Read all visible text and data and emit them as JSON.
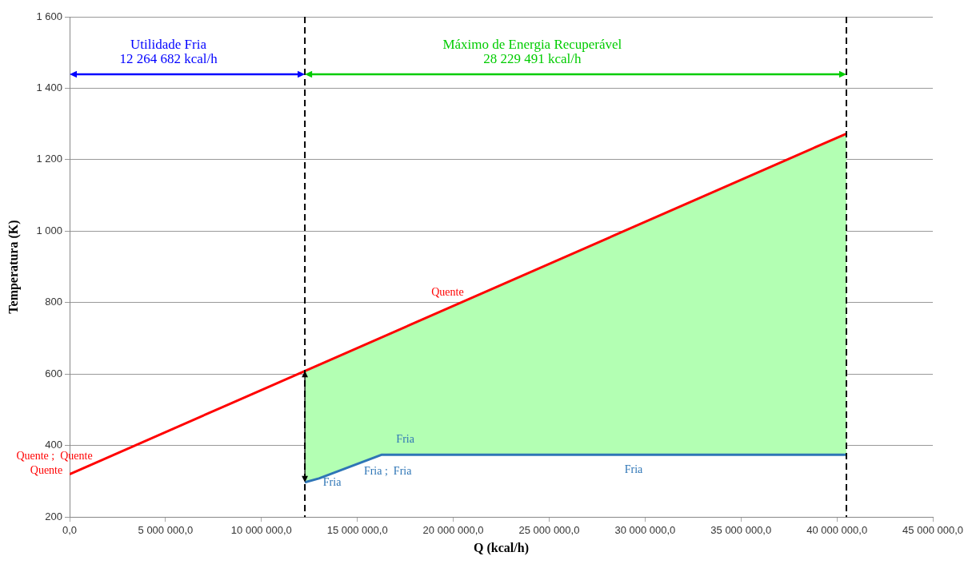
{
  "chart_data": {
    "type": "line",
    "xlabel": "Q (kcal/h)",
    "ylabel": "Temperatura (K)",
    "xlim": [
      0,
      45000000
    ],
    "xticks": [
      {
        "value": 0,
        "label": "0,0"
      },
      {
        "value": 5000000,
        "label": "5 000 000,0"
      },
      {
        "value": 10000000,
        "label": "10 000 000,0"
      },
      {
        "value": 15000000,
        "label": "15 000 000,0"
      },
      {
        "value": 20000000,
        "label": "20 000 000,0"
      },
      {
        "value": 25000000,
        "label": "25 000 000,0"
      },
      {
        "value": 30000000,
        "label": "30 000 000,0"
      },
      {
        "value": 35000000,
        "label": "35 000 000,0"
      },
      {
        "value": 40000000,
        "label": "40 000 000,0"
      },
      {
        "value": 45000000,
        "label": "45 000 000,0"
      }
    ],
    "ylim": [
      200,
      1600
    ],
    "yticks": [
      200,
      400,
      600,
      800,
      {
        "value": 1000,
        "label": "1 000"
      },
      {
        "value": 1200,
        "label": "1 200"
      },
      {
        "value": 1400,
        "label": "1 400"
      },
      {
        "value": 1600,
        "label": "1 600"
      }
    ],
    "grid": "y",
    "legend": false,
    "marker": "none",
    "series": [
      {
        "type": "area",
        "color": "#b3ffb3",
        "x": [
          12264682,
          13000000,
          16250000,
          40494173
        ],
        "values": [
          609,
          626,
          702,
          1273
        ]
      },
      {
        "type": "line",
        "color": "#ff0000",
        "x": [
          0,
          40494173
        ],
        "values": [
          320,
          1273
        ]
      },
      {
        "type": "line",
        "color": "#2e75b6",
        "x": [
          12264682,
          13000000,
          16250000,
          40494173
        ],
        "values": [
          297,
          308,
          374,
          374
        ]
      }
    ],
    "ref_lines": [
      {
        "axis": "x",
        "value": 12264682,
        "color": "#000000",
        "line_style": "dashed"
      },
      {
        "axis": "x",
        "value": 40494173,
        "color": "#000000",
        "line_style": "dashed"
      }
    ],
    "annotations": [
      "Utilidade Fria\n12 264 682 kcal/h",
      "Máximo de Energia Recuperável\n28 229 491 kcal/h",
      {
        "text": "Quente ;  Quente",
        "x": 0,
        "y": 320
      },
      {
        "text": "Quente",
        "x": 0,
        "y": 320
      },
      {
        "text": "Quente",
        "x": 19700000,
        "y": 784
      },
      {
        "text": "Fria",
        "x": 17500000,
        "y": 374
      },
      {
        "text": "Fria",
        "x": 12264682,
        "y": 297
      },
      {
        "text": "Fria ;  Fria",
        "x": 16250000,
        "y": 374
      },
      {
        "text": "Fria",
        "x": 29400000,
        "y": 374
      }
    ]
  }
}
